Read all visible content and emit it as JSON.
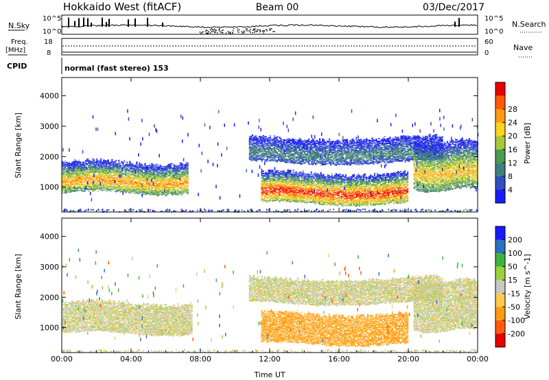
{
  "header": {
    "station": "Hokkaido West (fitACF)",
    "beam": "Beam 00",
    "date": "03/Dec/2017"
  },
  "noise_panel": {
    "left_label": "N.Sky",
    "right_label": "N.Search",
    "left_ticks": [
      "10^5",
      "10^0"
    ],
    "right_ticks": [
      "10^5",
      "10^0"
    ]
  },
  "freq_panel": {
    "left_label_1": "Freq.",
    "left_label_2": "[MHz]",
    "left_ticks": [
      "18",
      "8"
    ],
    "right_label": "Nave",
    "right_ticks": [
      "60",
      "0"
    ]
  },
  "cpid": {
    "label": "CPID",
    "text": "normal (fast stereo) 153"
  },
  "colors": {
    "power_scale": [
      "#1a1aff",
      "#2f4fbf",
      "#3f7f7f",
      "#4c9a4c",
      "#a8c83c",
      "#ffd21e",
      "#ff9a14",
      "#ff5a0a",
      "#e60000"
    ],
    "velocity_scale": [
      "#e60000",
      "#ff5a0a",
      "#ff9a14",
      "#ffc850",
      "#c8c8c0",
      "#9ad23c",
      "#3cb43c",
      "#2f6fbf",
      "#1a1aff"
    ]
  },
  "chart_data": [
    {
      "type": "heatmap",
      "name": "power",
      "ylabel": "Slant Range [km]",
      "xlim": [
        "00:00",
        "24:00"
      ],
      "ylim": [
        180,
        4600
      ],
      "yticks": [
        1000,
        2000,
        3000,
        4000
      ],
      "ytick_labels": [
        "1000",
        "2000",
        "3000",
        "4000"
      ],
      "colorbar": {
        "label": "Power [dB]",
        "range": [
          0,
          32
        ],
        "ticks": [
          4,
          8,
          12,
          16,
          20,
          24,
          28
        ],
        "tick_labels": [
          "4",
          "8",
          "12",
          "16",
          "20",
          "24",
          "28"
        ]
      },
      "echo_regions": [
        {
          "t_start": 0.0,
          "t_end": 7.3,
          "range_low": 800,
          "range_high": 1800,
          "power_peak": 24
        },
        {
          "t_start": 11.5,
          "t_end": 20.0,
          "range_low": 450,
          "range_high": 1450,
          "power_peak": 30
        },
        {
          "t_start": 10.8,
          "t_end": 22.0,
          "range_low": 1800,
          "range_high": 2600,
          "power_peak": 10
        },
        {
          "t_start": 20.3,
          "t_end": 24.0,
          "range_low": 900,
          "range_high": 2500,
          "power_peak": 22
        }
      ]
    },
    {
      "type": "heatmap",
      "name": "velocity",
      "ylabel": "Slant Range [km]",
      "xlabel": "Time UT",
      "xlim": [
        "00:00",
        "24:00"
      ],
      "ylim": [
        180,
        4600
      ],
      "yticks": [
        1000,
        2000,
        3000,
        4000
      ],
      "ytick_labels": [
        "1000",
        "2000",
        "3000",
        "4000"
      ],
      "xticks": [
        "00:00",
        "04:00",
        "08:00",
        "12:00",
        "16:00",
        "20:00",
        "00:00"
      ],
      "colorbar": {
        "label": "Velocity [m s^-1]",
        "range": [
          -250,
          250
        ],
        "tick_labels": [
          "-200",
          "-100",
          "-50",
          "-15",
          "15",
          "50",
          "100",
          "200"
        ]
      },
      "echo_regions": [
        {
          "t_start": 0.0,
          "t_end": 7.5,
          "range_low": 800,
          "range_high": 1800,
          "velocity": 0
        },
        {
          "t_start": 11.5,
          "t_end": 20.0,
          "range_low": 450,
          "range_high": 1450,
          "velocity": -60
        },
        {
          "t_start": 10.8,
          "t_end": 22.0,
          "range_low": 1800,
          "range_high": 2600,
          "velocity": 0
        },
        {
          "t_start": 20.3,
          "t_end": 24.0,
          "range_low": 900,
          "range_high": 2500,
          "velocity": 0
        }
      ]
    }
  ]
}
